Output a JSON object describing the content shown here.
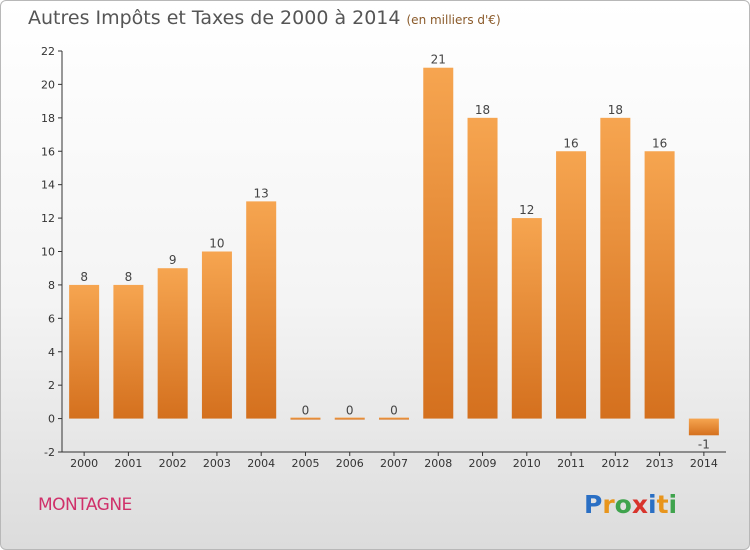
{
  "title": "Autres Impôts et Taxes de 2000 à 2014",
  "unit_note": "(en milliers d'€)",
  "commune": "MONTAGNE",
  "logo": {
    "letters": [
      "P",
      "r",
      "o",
      "x",
      "i",
      "t",
      "i"
    ],
    "colors": [
      "#2a6fc4",
      "#e8951c",
      "#3fa34d",
      "#d8342c",
      "#2a6fc4",
      "#e8951c",
      "#3fa34d"
    ]
  },
  "colors": {
    "bar_top": "#f6a550",
    "bar_bottom": "#d4701e",
    "axis": "#333333",
    "grid": "#cccccc"
  },
  "chart_data": {
    "type": "bar",
    "title": "Autres Impôts et Taxes de 2000 à 2014",
    "xlabel": "",
    "ylabel": "",
    "categories": [
      "2000",
      "2001",
      "2002",
      "2003",
      "2004",
      "2005",
      "2006",
      "2007",
      "2008",
      "2009",
      "2010",
      "2011",
      "2012",
      "2013",
      "2014"
    ],
    "values": [
      8,
      8,
      9,
      10,
      13,
      0,
      0,
      0,
      21,
      18,
      12,
      16,
      18,
      16,
      -1
    ],
    "ylim": [
      -2,
      22
    ],
    "yticks": [
      -2,
      0,
      2,
      4,
      6,
      8,
      10,
      12,
      14,
      16,
      18,
      20,
      22
    ],
    "grid": false
  }
}
